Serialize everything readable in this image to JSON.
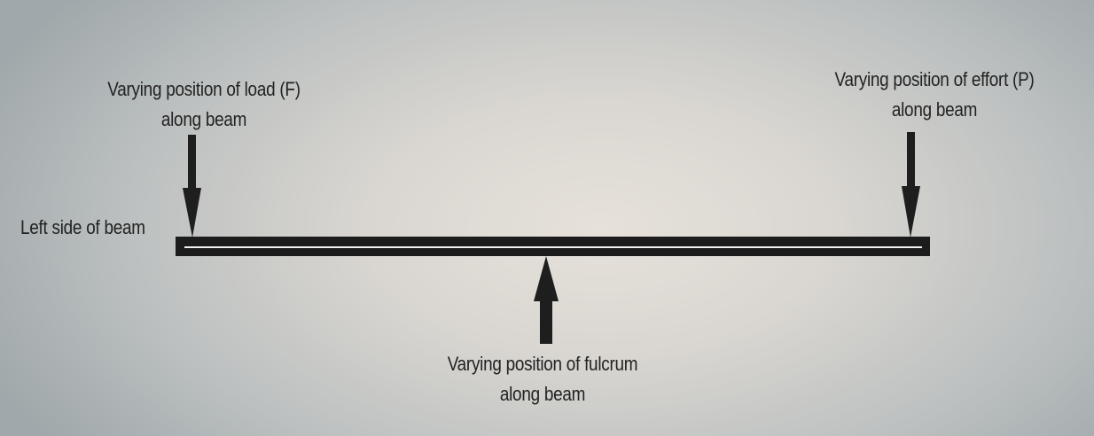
{
  "labels": {
    "load": {
      "line1": "Varying position of load (F)",
      "line2": "along beam"
    },
    "effort": {
      "line1": "Varying position of effort (P)",
      "line2": "along beam"
    },
    "fulcrum": {
      "line1": "Varying position of fulcrum",
      "line2": "along beam"
    },
    "left_side": "Left side of beam"
  },
  "colors": {
    "beam": "#1c1c1c",
    "beam_highlight": "#f2f2f2",
    "arrow": "#1e1e1e",
    "text": "#222222"
  }
}
